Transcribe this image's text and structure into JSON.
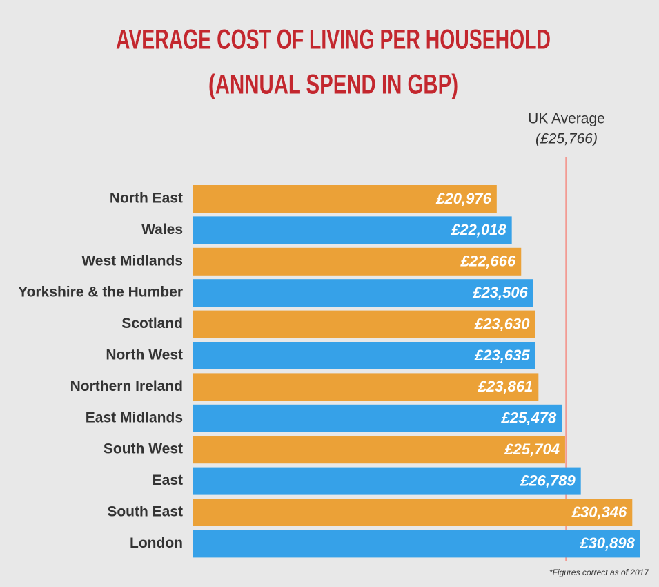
{
  "chart_data": {
    "type": "hbar",
    "title": [
      "AVERAGE COST OF LIVING PER HOUSEHOLD",
      "(ANNUAL SPEND IN GBP)"
    ],
    "categories": [
      "North East",
      "Wales",
      "West Midlands",
      "Yorkshire & the Humber",
      "Scotland",
      "North West",
      "Northern Ireland",
      "East Midlands",
      "South West",
      "East",
      "South East",
      "London"
    ],
    "values": [
      20976,
      22018,
      22666,
      23506,
      23630,
      23635,
      23861,
      25478,
      25704,
      26789,
      30346,
      30898
    ],
    "value_labels": [
      "£20,976",
      "£22,018",
      "£22,666",
      "£23,506",
      "£23,630",
      "£23,635",
      "£23,861",
      "£25,478",
      "£25,704",
      "£26,789",
      "£30,346",
      "£30,898"
    ],
    "colors": [
      "#eba137",
      "#36a1e8",
      "#eba137",
      "#36a1e8",
      "#eba137",
      "#36a1e8",
      "#eba137",
      "#36a1e8",
      "#eba137",
      "#36a1e8",
      "#eba137",
      "#36a1e8"
    ],
    "xlim": [
      0,
      31000
    ],
    "reference": {
      "label": "UK Average",
      "value": 25766,
      "value_label": "(£25,766)",
      "color": "#f29b93"
    },
    "footnote": "*Figures correct as of 2017"
  }
}
